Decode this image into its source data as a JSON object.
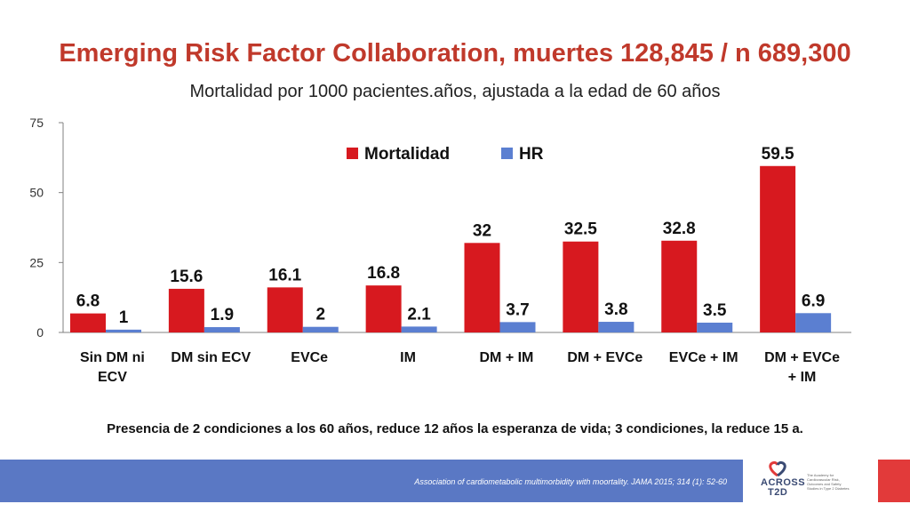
{
  "title": "Emerging Risk Factor Collaboration, muertes 128,845 / n 689,300",
  "subtitle": "Mortalidad por 1000 pacientes.años, ajustada a la edad de 60 años",
  "note": "Presencia de 2 condiciones a los 60 años, reduce 12 años la esperanza de vida; 3 condiciones, la reduce 15 a.",
  "citation": "Association of cardiometabolic multimorbidity with moortality. JAMA 2015; 314 (1): 52-60",
  "logo": {
    "wordmark_line1": "ACROSS",
    "wordmark_line2": "T2D",
    "tagline": "The Academy for Cardiovascular Risk, Outcomes and Safety Studies in Type 2 Diabetes"
  },
  "colors": {
    "title": "#c0392b",
    "mortalidad": "#d7191f",
    "hr": "#5b7fd1",
    "footer_band": "#5a78c4",
    "accent_square": "#e23a3a"
  },
  "chart_data": {
    "type": "bar",
    "categories": [
      [
        "Sin DM ni",
        "ECV"
      ],
      [
        "DM sin ECV"
      ],
      [
        "EVCe"
      ],
      [
        "IM"
      ],
      [
        "DM + IM"
      ],
      [
        "DM + EVCe"
      ],
      [
        "EVCe + IM"
      ],
      [
        "DM + EVCe",
        "+ IM"
      ]
    ],
    "series": [
      {
        "name": "Mortalidad",
        "values": [
          6.8,
          15.6,
          16.1,
          16.8,
          32,
          32.5,
          32.8,
          59.5
        ],
        "labels": [
          "6.8",
          "15.6",
          "16.1",
          "16.8",
          "32",
          "32.5",
          "32.8",
          "59.5"
        ]
      },
      {
        "name": "HR",
        "values": [
          1,
          1.9,
          2,
          2.1,
          3.7,
          3.8,
          3.5,
          6.9
        ],
        "labels": [
          "1",
          "1.9",
          "2",
          "2.1",
          "3.7",
          "3.8",
          "3.5",
          "6.9"
        ]
      }
    ],
    "ylim": [
      0,
      75
    ],
    "yticks": [
      0,
      25,
      50,
      75
    ],
    "legend": "top-center",
    "grid": false
  }
}
